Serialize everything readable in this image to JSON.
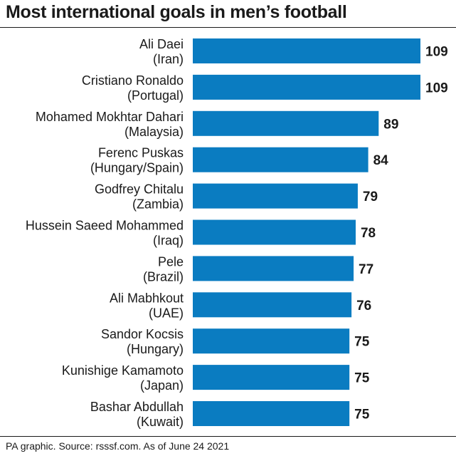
{
  "header": {
    "title": "Most international goals in men’s football"
  },
  "footer": {
    "source": "PA graphic. Source: rsssf.com. As of June 24 2021"
  },
  "colors": {
    "bar": "#0a7cc1",
    "text": "#1a1a1a"
  },
  "chart_data": {
    "type": "bar",
    "orientation": "horizontal",
    "title": "Most international goals in men’s football",
    "categories": [
      [
        "Ali Daei",
        "(Iran)"
      ],
      [
        "Cristiano Ronaldo",
        "(Portugal)"
      ],
      [
        "Mohamed Mokhtar Dahari",
        "(Malaysia)"
      ],
      [
        "Ferenc Puskas",
        "(Hungary/Spain)"
      ],
      [
        "Godfrey Chitalu",
        "(Zambia)"
      ],
      [
        "Hussein Saeed Mohammed",
        "(Iraq)"
      ],
      [
        "Pele",
        "(Brazil)"
      ],
      [
        "Ali Mabhkout",
        "(UAE)"
      ],
      [
        "Sandor Kocsis",
        "(Hungary)"
      ],
      [
        "Kunishige Kamamoto",
        "(Japan)"
      ],
      [
        "Bashar Abdullah",
        "(Kuwait)"
      ]
    ],
    "values": [
      109,
      109,
      89,
      84,
      79,
      78,
      77,
      76,
      75,
      75,
      75
    ],
    "xlim": [
      0,
      109
    ],
    "grid": false,
    "legend": "none",
    "data_labels": true
  }
}
